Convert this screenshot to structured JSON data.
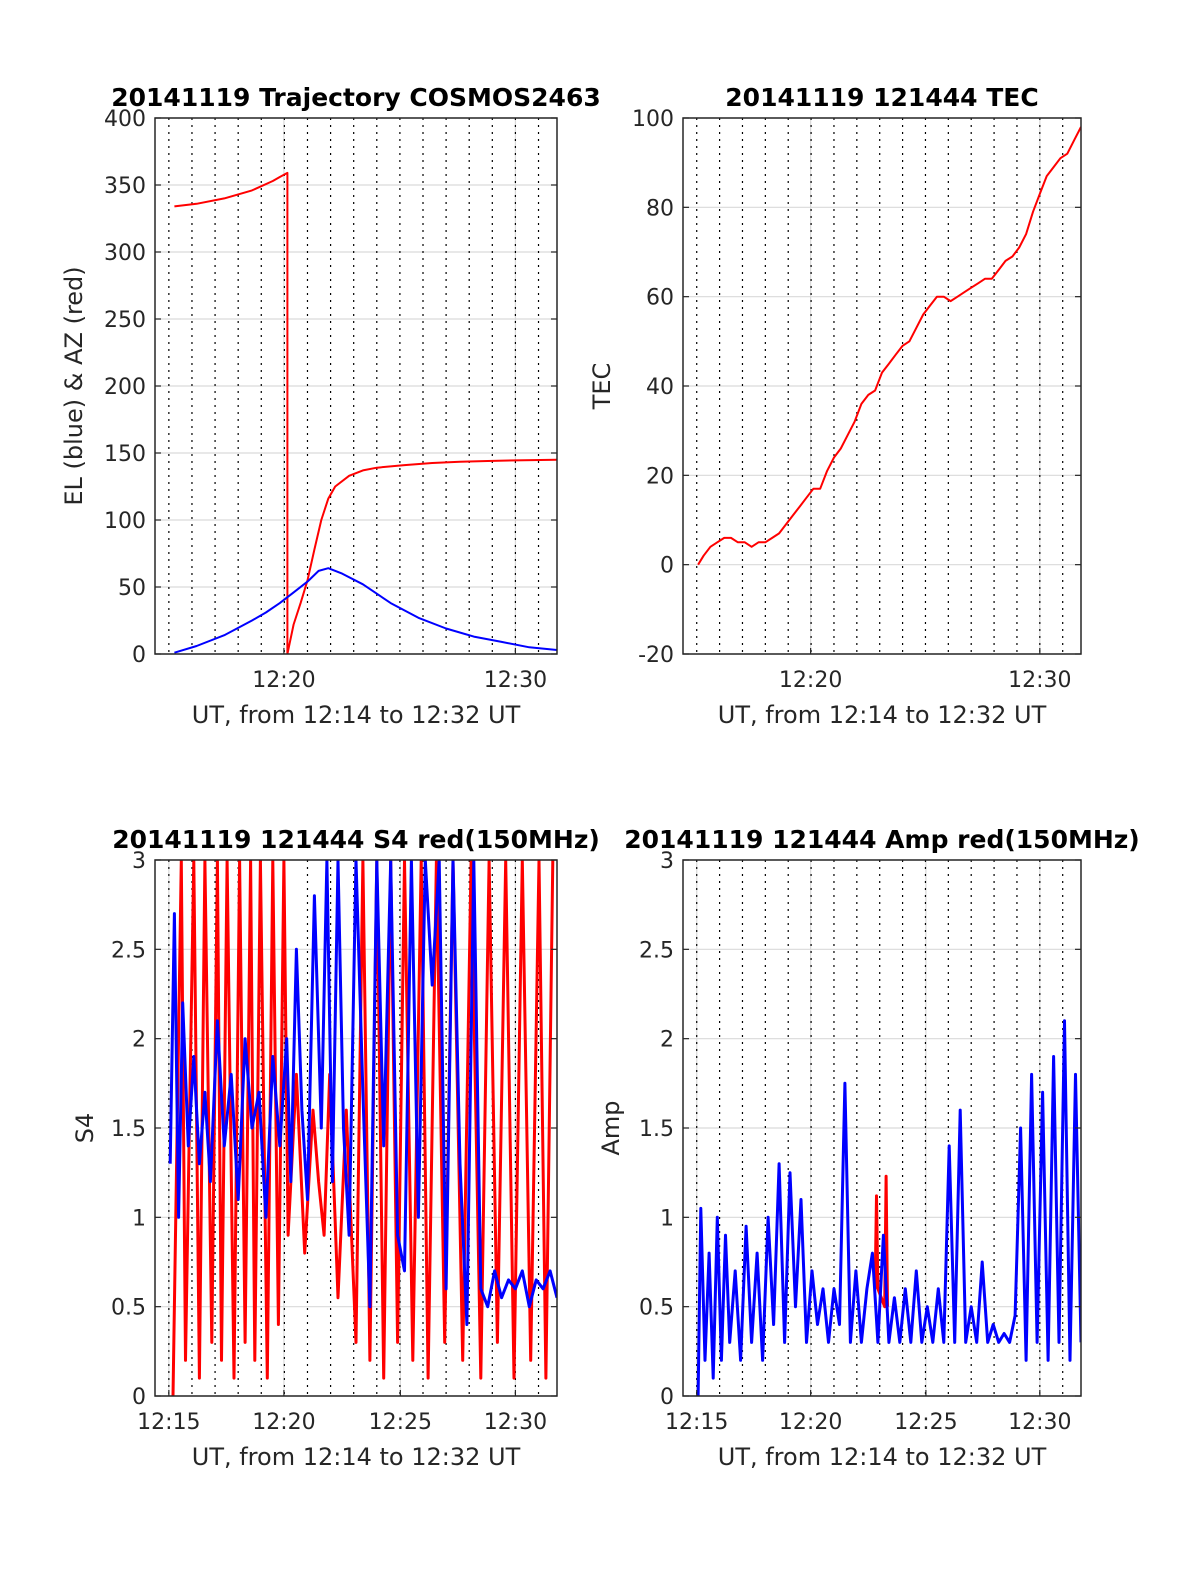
{
  "colors": {
    "red": "#ff0000",
    "blue": "#0000ff",
    "grid": "#d9d9d9",
    "axis": "#262626"
  },
  "chart_data": [
    {
      "type": "line",
      "title": "20141119 Trajectory COSMOS2463",
      "xlabel": "UT, from 12:14 to 12:32 UT",
      "ylabel": "EL (blue) & AZ (red)",
      "xlim": [
        12.24,
        12.53
      ],
      "ylim": [
        0,
        400
      ],
      "yticks": [
        0,
        50,
        100,
        150,
        200,
        250,
        300,
        350,
        400
      ],
      "ytick_labels": [
        "0",
        "50",
        "100",
        "150",
        "200",
        "250",
        "300",
        "350",
        "400"
      ],
      "xticks": [
        12.333,
        12.5
      ],
      "xtick_labels": [
        "12:20",
        "12:30"
      ],
      "grid": true,
      "series": [
        {
          "color": "#ff0000",
          "x": [
            12.254,
            12.27,
            12.29,
            12.31,
            12.325,
            12.33,
            12.3355,
            12.3355,
            12.34,
            12.345,
            12.35,
            12.355,
            12.36,
            12.365,
            12.37,
            12.38,
            12.39,
            12.4,
            12.42,
            12.44,
            12.46,
            12.48,
            12.5,
            12.53
          ],
          "y": [
            334,
            336,
            340,
            346,
            353,
            356,
            359,
            0,
            22,
            38,
            55,
            78,
            100,
            116,
            125,
            133,
            137,
            139,
            141,
            142.5,
            143.5,
            144,
            144.5,
            145
          ]
        },
        {
          "color": "#0000ff",
          "x": [
            12.254,
            12.27,
            12.29,
            12.31,
            12.32,
            12.33,
            12.34,
            12.35,
            12.358,
            12.365,
            12.375,
            12.39,
            12.41,
            12.43,
            12.45,
            12.47,
            12.49,
            12.51,
            12.53
          ],
          "y": [
            1,
            6,
            14,
            25,
            31,
            38,
            46,
            54,
            62,
            64,
            60,
            52,
            38,
            27,
            19,
            13,
            9,
            5,
            3
          ]
        }
      ]
    },
    {
      "type": "line",
      "title": "20141119 121444 TEC",
      "xlabel": "UT, from 12:14 to 12:32 UT",
      "ylabel": "TEC",
      "xlim": [
        12.24,
        12.53
      ],
      "ylim": [
        -20,
        100
      ],
      "yticks": [
        -20,
        0,
        20,
        40,
        60,
        80,
        100
      ],
      "ytick_labels": [
        "-20",
        "0",
        "20",
        "40",
        "60",
        "80",
        "100"
      ],
      "xticks": [
        12.333,
        12.5
      ],
      "xtick_labels": [
        "12:20",
        "12:30"
      ],
      "grid": true,
      "series": [
        {
          "color": "#ff0000",
          "x": [
            12.251,
            12.255,
            12.26,
            12.265,
            12.27,
            12.275,
            12.28,
            12.285,
            12.29,
            12.295,
            12.3,
            12.305,
            12.31,
            12.315,
            12.32,
            12.325,
            12.33,
            12.335,
            12.34,
            12.345,
            12.35,
            12.355,
            12.36,
            12.365,
            12.37,
            12.375,
            12.38,
            12.385,
            12.39,
            12.395,
            12.4,
            12.405,
            12.41,
            12.415,
            12.42,
            12.425,
            12.43,
            12.435,
            12.44,
            12.445,
            12.45,
            12.455,
            12.46,
            12.465,
            12.47,
            12.475,
            12.48,
            12.485,
            12.49,
            12.495,
            12.5,
            12.505,
            12.51,
            12.515,
            12.52,
            12.525,
            12.53
          ],
          "y": [
            0,
            2,
            4,
            5,
            6,
            6,
            5,
            5,
            4,
            5,
            5,
            6,
            7,
            9,
            11,
            13,
            15,
            17,
            17,
            21,
            24,
            26,
            29,
            32,
            36,
            38,
            39,
            43,
            45,
            47,
            49,
            50,
            53,
            56,
            58,
            60,
            60,
            59,
            60,
            61,
            62,
            63,
            64,
            64,
            66,
            68,
            69,
            71,
            74,
            79,
            83,
            87,
            89,
            91,
            92,
            95,
            98
          ]
        }
      ]
    },
    {
      "type": "line",
      "title": "20141119 121444 S4 red(150MHz)",
      "xlabel": "UT, from 12:14 to 12:32 UT",
      "ylabel": "S4",
      "xlim": [
        12.24,
        12.53
      ],
      "ylim": [
        0,
        3
      ],
      "yticks": [
        0,
        0.5,
        1,
        1.5,
        2,
        2.5,
        3
      ],
      "ytick_labels": [
        "0",
        "0.5",
        "1",
        "1.5",
        "2",
        "2.5",
        "3"
      ],
      "xticks": [
        12.25,
        12.333,
        12.417,
        12.5
      ],
      "xtick_labels": [
        "12:15",
        "12:20",
        "12:25",
        "12:30"
      ],
      "grid": true,
      "series": [
        {
          "color": "#ff0000",
          "x": [
            12.253,
            12.259,
            12.262,
            12.268,
            12.272,
            12.276,
            12.281,
            12.285,
            12.288,
            12.292,
            12.297,
            12.301,
            12.305,
            12.309,
            12.312,
            12.316,
            12.321,
            12.325,
            12.329,
            12.333,
            12.336,
            12.342,
            12.348,
            12.354,
            12.358,
            12.362,
            12.366,
            12.372,
            12.378,
            12.385,
            12.39,
            12.395,
            12.4,
            12.405,
            12.41,
            12.415,
            12.42,
            12.426,
            12.432,
            12.437,
            12.443,
            12.449,
            12.455,
            12.462,
            12.468,
            12.475,
            12.481,
            12.487,
            12.493,
            12.499,
            12.505,
            12.511,
            12.517,
            12.522,
            12.527
          ],
          "y": [
            0,
            3,
            0.2,
            3,
            0.1,
            3,
            0.3,
            3,
            0.2,
            3,
            0.1,
            3,
            0.3,
            3,
            0.2,
            3,
            0.1,
            3,
            0.4,
            3,
            0.9,
            1.8,
            0.8,
            1.6,
            1.2,
            0.9,
            1.8,
            0.55,
            1.6,
            0.3,
            3,
            0.2,
            3,
            0.1,
            3,
            0.3,
            3,
            0.2,
            3,
            0.1,
            3,
            0.3,
            3,
            0.2,
            3,
            0.1,
            3,
            0.3,
            3,
            0.1,
            3,
            0.2,
            3,
            0.1,
            3
          ]
        },
        {
          "color": "#0000ff",
          "x": [
            12.251,
            12.254,
            12.257,
            12.26,
            12.264,
            12.268,
            12.272,
            12.276,
            12.28,
            12.285,
            12.29,
            12.295,
            12.3,
            12.305,
            12.31,
            12.315,
            12.32,
            12.325,
            12.33,
            12.335,
            12.338,
            12.342,
            12.346,
            12.35,
            12.355,
            12.36,
            12.364,
            12.368,
            12.372,
            12.376,
            12.38,
            12.385,
            12.39,
            12.395,
            12.4,
            12.405,
            12.41,
            12.415,
            12.42,
            12.425,
            12.43,
            12.435,
            12.44,
            12.445,
            12.45,
            12.455,
            12.46,
            12.465,
            12.47,
            12.475,
            12.48,
            12.485,
            12.49,
            12.495,
            12.5,
            12.505,
            12.51,
            12.515,
            12.52,
            12.525,
            12.53
          ],
          "y": [
            1.3,
            2.7,
            1.0,
            2.2,
            1.4,
            1.9,
            1.3,
            1.7,
            1.2,
            2.1,
            1.4,
            1.8,
            1.1,
            2.0,
            1.5,
            1.7,
            1.0,
            1.9,
            1.4,
            2.0,
            1.2,
            2.5,
            1.6,
            1.1,
            2.8,
            1.5,
            3.0,
            1.2,
            3.0,
            1.5,
            0.9,
            3.0,
            1.7,
            0.5,
            3.0,
            1.4,
            3.0,
            0.9,
            0.7,
            3.0,
            1.0,
            3.0,
            2.3,
            3.0,
            0.6,
            3.0,
            1.3,
            0.4,
            3.0,
            0.6,
            0.5,
            0.7,
            0.55,
            0.65,
            0.6,
            0.7,
            0.5,
            0.65,
            0.6,
            0.7,
            0.55
          ]
        }
      ]
    },
    {
      "type": "line",
      "title": "20141119 121444 Amp red(150MHz)",
      "xlabel": "UT, from 12:14 to 12:32 UT",
      "ylabel": "Amp",
      "xlim": [
        12.24,
        12.53
      ],
      "ylim": [
        0,
        3
      ],
      "yticks": [
        0,
        0.5,
        1,
        1.5,
        2,
        2.5,
        3
      ],
      "ytick_labels": [
        "0",
        "0.5",
        "1",
        "1.5",
        "2",
        "2.5",
        "3"
      ],
      "xticks": [
        12.25,
        12.333,
        12.417,
        12.5
      ],
      "xtick_labels": [
        "12:15",
        "12:20",
        "12:25",
        "12:30"
      ],
      "grid": true,
      "series": [
        {
          "color": "#ff0000",
          "x": [
            12.38,
            12.381,
            12.382,
            12.387,
            12.388,
            12.389
          ],
          "y": [
            0.6,
            1.12,
            0.6,
            0.5,
            1.23,
            0.5
          ]
        },
        {
          "color": "#0000ff",
          "x": [
            12.251,
            12.253,
            12.256,
            12.259,
            12.262,
            12.265,
            12.268,
            12.271,
            12.274,
            12.278,
            12.282,
            12.286,
            12.29,
            12.294,
            12.298,
            12.302,
            12.306,
            12.31,
            12.314,
            12.318,
            12.322,
            12.326,
            12.33,
            12.334,
            12.338,
            12.342,
            12.346,
            12.35,
            12.354,
            12.358,
            12.362,
            12.366,
            12.37,
            12.374,
            12.378,
            12.382,
            12.386,
            12.39,
            12.394,
            12.398,
            12.402,
            12.406,
            12.41,
            12.414,
            12.418,
            12.422,
            12.426,
            12.43,
            12.434,
            12.438,
            12.442,
            12.446,
            12.45,
            12.454,
            12.458,
            12.462,
            12.466,
            12.47,
            12.474,
            12.478,
            12.482,
            12.486,
            12.49,
            12.494,
            12.498,
            12.502,
            12.506,
            12.51,
            12.514,
            12.518,
            12.522,
            12.526,
            12.53
          ],
          "y": [
            0.0,
            1.05,
            0.2,
            0.8,
            0.1,
            1.0,
            0.2,
            0.9,
            0.3,
            0.7,
            0.2,
            0.95,
            0.3,
            0.8,
            0.2,
            1.0,
            0.4,
            1.3,
            0.3,
            1.25,
            0.5,
            1.1,
            0.3,
            0.7,
            0.4,
            0.6,
            0.3,
            0.6,
            0.4,
            1.75,
            0.3,
            0.7,
            0.3,
            0.6,
            0.8,
            0.3,
            0.9,
            0.3,
            0.55,
            0.3,
            0.6,
            0.3,
            0.7,
            0.3,
            0.5,
            0.3,
            0.6,
            0.3,
            1.4,
            0.3,
            1.6,
            0.3,
            0.5,
            0.3,
            0.75,
            0.3,
            0.4,
            0.3,
            0.35,
            0.3,
            0.45,
            1.5,
            0.2,
            1.8,
            0.3,
            1.7,
            0.2,
            1.9,
            0.3,
            2.1,
            0.2,
            1.8,
            0.3
          ]
        }
      ]
    }
  ]
}
